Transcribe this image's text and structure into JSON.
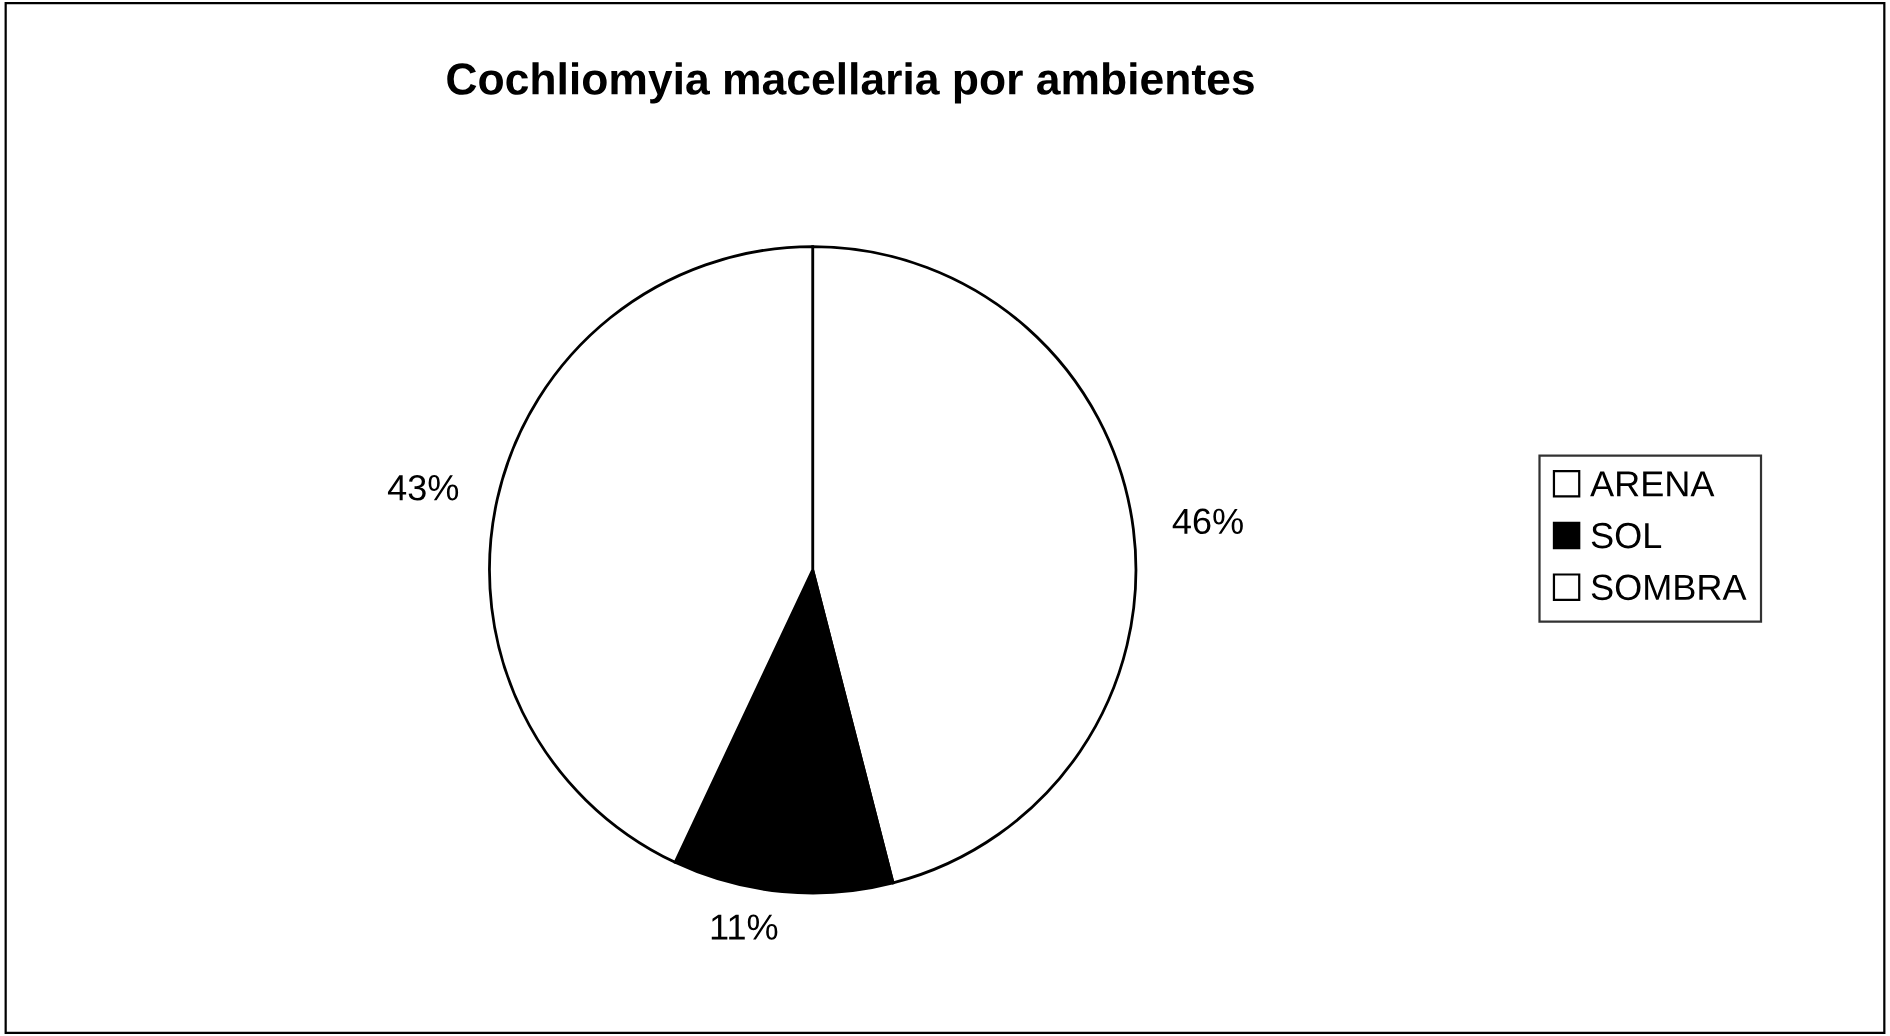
{
  "chart_data": {
    "type": "pie",
    "title": "Cochliomyia macellaria por ambientes",
    "categories": [
      "ARENA",
      "SOL",
      "SOMBRA"
    ],
    "values": [
      46,
      11,
      43
    ],
    "colors": [
      "#ffffff",
      "#000000",
      "#ffffff"
    ],
    "value_labels": [
      "46%",
      "11%",
      "43%"
    ],
    "legend": "right"
  }
}
